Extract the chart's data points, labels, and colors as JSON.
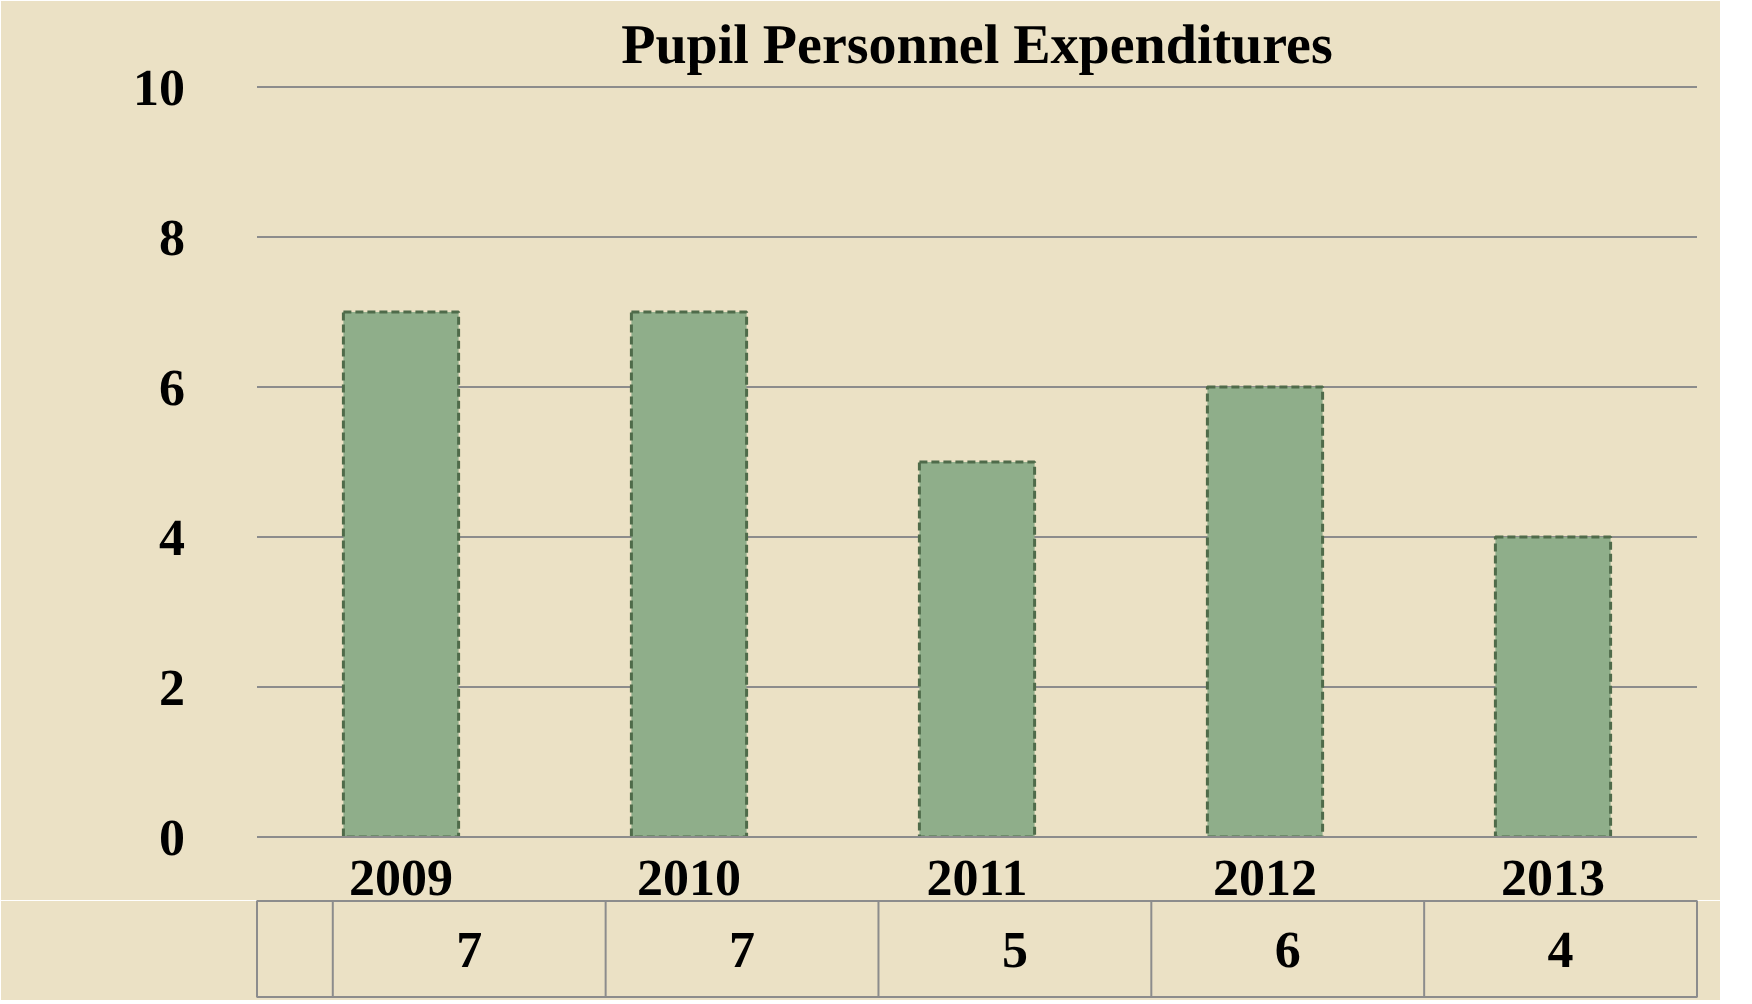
{
  "chart_data": {
    "type": "bar",
    "title": "Pupil Personnel Expenditures",
    "categories": [
      "2009",
      "2010",
      "2011",
      "2012",
      "2013"
    ],
    "values": [
      7,
      7,
      5,
      6,
      4
    ],
    "color": "#8fae8a",
    "ylim": [
      0,
      10
    ],
    "yticks": [
      0,
      2,
      4,
      6,
      8,
      10
    ],
    "grid": "y",
    "data_labels": true
  }
}
